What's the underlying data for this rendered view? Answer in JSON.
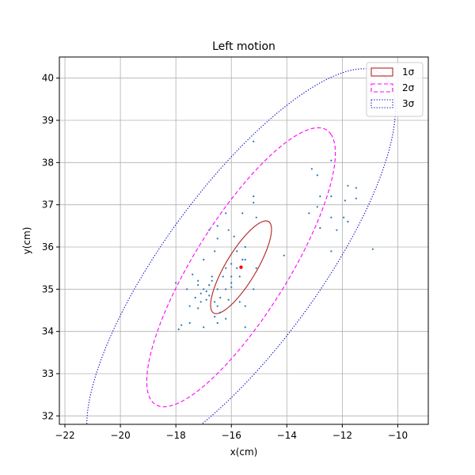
{
  "chart_data": {
    "type": "scatter",
    "title": "Left motion",
    "xlabel": "x(cm)",
    "ylabel": "y(cm)",
    "xlim": [
      -22.2,
      -8.9
    ],
    "ylim": [
      31.8,
      40.5
    ],
    "xticks": [
      -22,
      -20,
      -18,
      -16,
      -14,
      -12,
      -10
    ],
    "yticks": [
      32,
      33,
      34,
      35,
      36,
      37,
      38,
      39,
      40
    ],
    "grid": true,
    "legend_position": "top-right",
    "legend": [
      {
        "label": "1σ",
        "color": "#b22222",
        "style": "solid"
      },
      {
        "label": "2σ",
        "color": "#ff00ff",
        "style": "dashed"
      },
      {
        "label": "3σ",
        "color": "#0000cd",
        "style": "dotted"
      }
    ],
    "mean": {
      "x": -15.65,
      "y": 35.52,
      "color": "#ff0000"
    },
    "ellipses": [
      {
        "name": "1σ",
        "cx": -15.65,
        "cy": 35.52,
        "a": 1.48,
        "b": 0.47,
        "angle_deg": 45
      },
      {
        "name": "2σ",
        "cx": -15.65,
        "cy": 35.52,
        "a": 4.52,
        "b": 1.43,
        "angle_deg": 44
      },
      {
        "name": "3σ",
        "cx": -15.65,
        "cy": 35.52,
        "a": 6.91,
        "b": 2.3,
        "angle_deg": 39
      }
    ],
    "points_color": "#1f77b4",
    "points": [
      [
        -15.2,
        38.5
      ],
      [
        -13.1,
        37.85
      ],
      [
        -12.9,
        37.7
      ],
      [
        -12.4,
        38.05
      ],
      [
        -12.8,
        37.2
      ],
      [
        -12.4,
        37.2
      ],
      [
        -11.9,
        37.1
      ],
      [
        -11.8,
        37.45
      ],
      [
        -11.5,
        37.4
      ],
      [
        -11.5,
        37.15
      ],
      [
        -12.9,
        36.95
      ],
      [
        -11.95,
        36.7
      ],
      [
        -11.8,
        36.6
      ],
      [
        -12.4,
        36.7
      ],
      [
        -12.2,
        36.4
      ],
      [
        -12.8,
        36.45
      ],
      [
        -13.2,
        36.8
      ],
      [
        -10.9,
        35.95
      ],
      [
        -12.4,
        35.9
      ],
      [
        -14.1,
        35.8
      ],
      [
        -15.2,
        37.2
      ],
      [
        -15.2,
        37.05
      ],
      [
        -15.6,
        36.8
      ],
      [
        -16.2,
        36.8
      ],
      [
        -15.1,
        36.7
      ],
      [
        -16.5,
        36.5
      ],
      [
        -16.8,
        36.4
      ],
      [
        -16.1,
        36.4
      ],
      [
        -15.9,
        36.25
      ],
      [
        -16.5,
        36.2
      ],
      [
        -15.5,
        36.0
      ],
      [
        -15.8,
        35.9
      ],
      [
        -16.6,
        35.9
      ],
      [
        -15.6,
        35.7
      ],
      [
        -15.5,
        35.7
      ],
      [
        -17.0,
        35.7
      ],
      [
        -16.2,
        35.5
      ],
      [
        -16.0,
        35.3
      ],
      [
        -15.1,
        35.5
      ],
      [
        -17.4,
        35.35
      ],
      [
        -18.0,
        35.15
      ],
      [
        -17.2,
        35.1
      ],
      [
        -17.0,
        35.0
      ],
      [
        -16.9,
        34.95
      ],
      [
        -17.6,
        35.0
      ],
      [
        -16.5,
        35.0
      ],
      [
        -16.0,
        35.15
      ],
      [
        -16.2,
        35.0
      ],
      [
        -17.1,
        34.9
      ],
      [
        -16.8,
        34.85
      ],
      [
        -16.4,
        34.8
      ],
      [
        -16.9,
        34.75
      ],
      [
        -17.3,
        34.8
      ],
      [
        -17.1,
        34.7
      ],
      [
        -16.6,
        34.7
      ],
      [
        -16.1,
        34.75
      ],
      [
        -15.7,
        34.7
      ],
      [
        -15.5,
        34.6
      ],
      [
        -16.5,
        34.6
      ],
      [
        -17.2,
        34.55
      ],
      [
        -16.4,
        34.45
      ],
      [
        -16.6,
        34.35
      ],
      [
        -16.2,
        34.3
      ],
      [
        -17.5,
        34.2
      ],
      [
        -17.8,
        34.15
      ],
      [
        -17.0,
        34.1
      ],
      [
        -16.5,
        34.2
      ],
      [
        -15.5,
        34.1
      ],
      [
        -17.9,
        34.05
      ],
      [
        -16.0,
        35.6
      ],
      [
        -15.8,
        35.5
      ],
      [
        -16.7,
        35.3
      ],
      [
        -17.2,
        35.2
      ],
      [
        -16.3,
        35.3
      ],
      [
        -16.8,
        35.1
      ],
      [
        -15.7,
        35.3
      ],
      [
        -16.0,
        35.05
      ],
      [
        -17.5,
        34.6
      ],
      [
        -16.7,
        35.2
      ],
      [
        -15.2,
        35.0
      ]
    ]
  }
}
